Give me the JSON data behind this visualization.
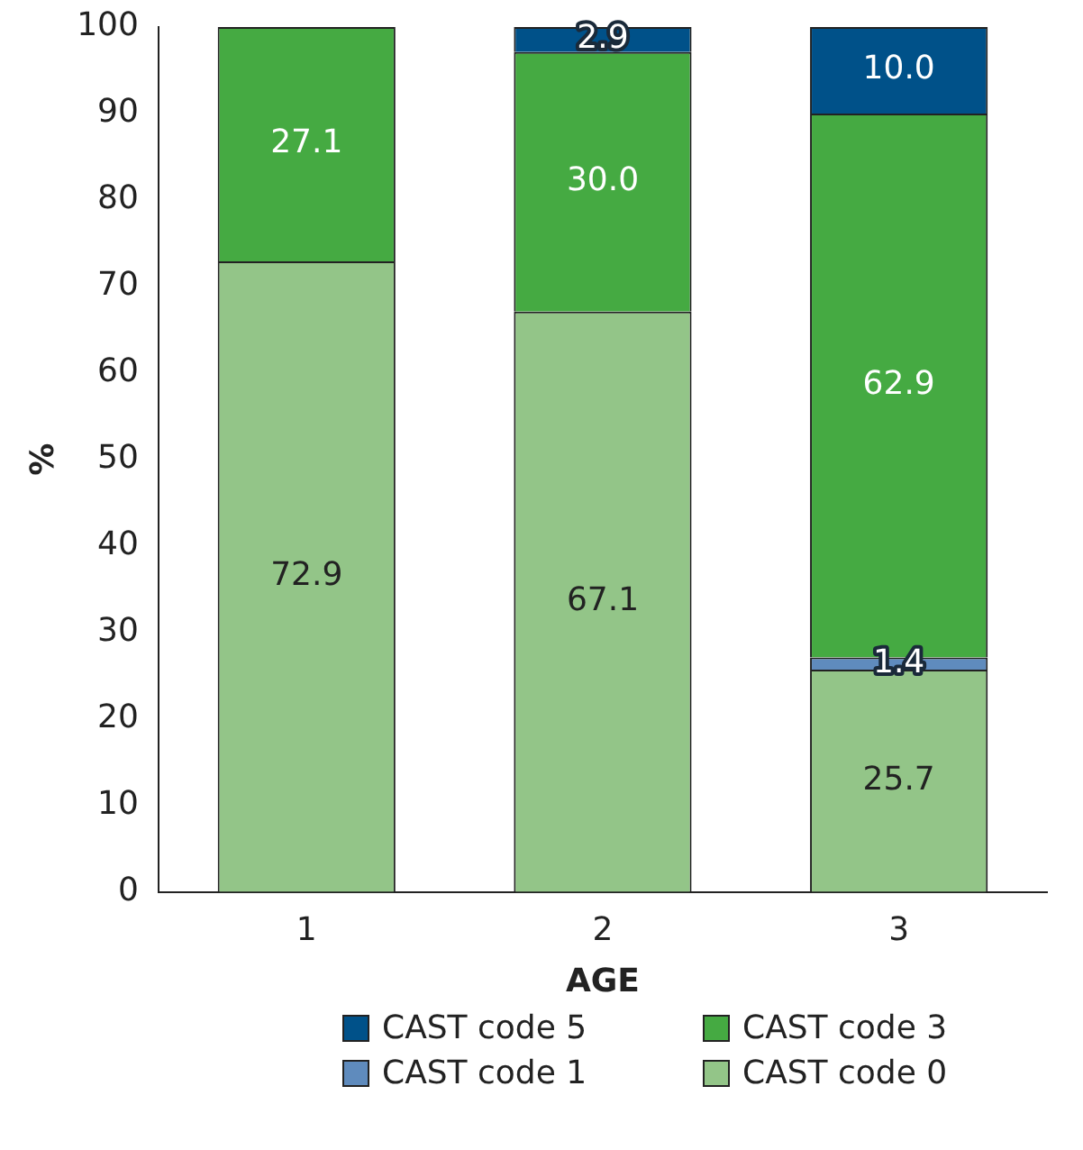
{
  "chart_data": {
    "type": "bar",
    "stacked": true,
    "xlabel": "AGE",
    "ylabel": "%",
    "categories": [
      "1",
      "2",
      "3"
    ],
    "series": [
      {
        "name": "CAST code 0",
        "color": "#93c588",
        "values": [
          72.9,
          67.1,
          25.7
        ],
        "value_labels": [
          "72.9",
          "67.1",
          "25.7"
        ]
      },
      {
        "name": "CAST code 1",
        "color": "#5f8bbd",
        "values": [
          null,
          null,
          1.4
        ],
        "value_labels": [
          null,
          null,
          "1.4"
        ]
      },
      {
        "name": "CAST code 3",
        "color": "#45aa42",
        "values": [
          27.1,
          30.0,
          62.9
        ],
        "value_labels": [
          "27.1",
          "30.0",
          "62.9"
        ]
      },
      {
        "name": "CAST code 5",
        "color": "#005189",
        "values": [
          null,
          2.9,
          10.0
        ],
        "value_labels": [
          null,
          "2.9",
          "10.0"
        ]
      }
    ],
    "ylim": [
      0,
      100
    ],
    "yticks": [
      0,
      10,
      20,
      30,
      40,
      50,
      60,
      70,
      80,
      90,
      100
    ],
    "grid": false,
    "legend": "bottom"
  }
}
